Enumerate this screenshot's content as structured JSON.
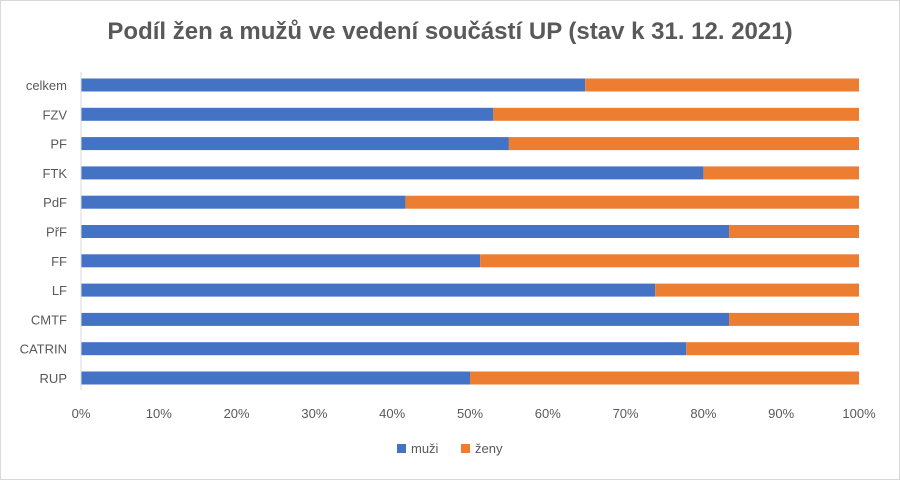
{
  "chart_data": {
    "type": "bar",
    "orientation": "horizontal",
    "stacked": "percent",
    "title": "Podíl žen a mužů ve vedení součástí UP (stav k 31. 12. 2021)",
    "categories": [
      "celkem",
      "FZV",
      "PF",
      "FTK",
      "PdF",
      "PřF",
      "FF",
      "LF",
      "CMTF",
      "CATRIN",
      "RUP"
    ],
    "series": [
      {
        "name": "muži",
        "color": "#4472c4",
        "values": [
          0.648,
          0.53,
          0.55,
          0.8,
          0.417,
          0.833,
          0.513,
          0.738,
          0.833,
          0.778,
          0.5
        ]
      },
      {
        "name": "ženy",
        "color": "#ed7d31",
        "values": [
          0.352,
          0.47,
          0.45,
          0.2,
          0.583,
          0.167,
          0.487,
          0.262,
          0.167,
          0.222,
          0.5
        ]
      }
    ],
    "x_ticks": [
      "0%",
      "10%",
      "20%",
      "30%",
      "40%",
      "50%",
      "60%",
      "70%",
      "80%",
      "90%",
      "100%"
    ],
    "xlim": [
      0,
      1
    ],
    "legend_position": "bottom",
    "grid": false
  }
}
